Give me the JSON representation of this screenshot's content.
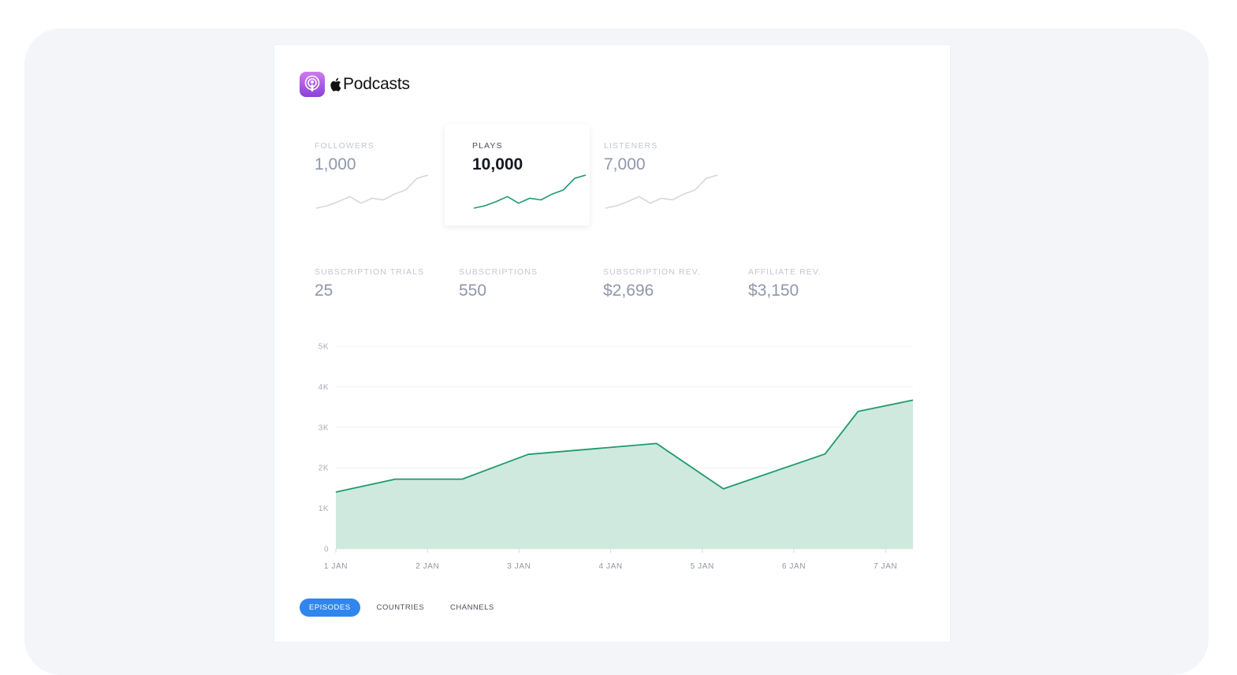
{
  "brand": {
    "name": "Podcasts",
    "icon": "podcasts-app-icon",
    "mark": "apple-logo-icon",
    "icon_gradient": [
      "#d07cf0",
      "#8a3fd8"
    ]
  },
  "metrics": [
    {
      "label": "FOLLOWERS",
      "value": "1,000",
      "active": false
    },
    {
      "label": "PLAYS",
      "value": "10,000",
      "active": true
    },
    {
      "label": "LISTENERS",
      "value": "7,000",
      "active": false
    }
  ],
  "sparkline_values": [
    2,
    2.6,
    3.6,
    4.8,
    3.2,
    4.4,
    4,
    5.4,
    6.4,
    9.2,
    10
  ],
  "stats": [
    {
      "label": "SUBSCRIPTION TRIALS",
      "value": "25"
    },
    {
      "label": "SUBSCRIPTIONS",
      "value": "550"
    },
    {
      "label": "SUBSCRIPTION REV.",
      "value": "$2,696"
    },
    {
      "label": "AFFILIATE REV.",
      "value": "$3,150"
    }
  ],
  "chart_data": {
    "type": "area",
    "x_ticks": [
      "1 JAN",
      "2 JAN",
      "3 JAN",
      "4 JAN",
      "5 JAN",
      "6 JAN",
      "7 JAN"
    ],
    "y_ticks": [
      "0",
      "1K",
      "2K",
      "3K",
      "4K",
      "5K"
    ],
    "ylim": [
      0,
      5000
    ],
    "xlim": [
      0,
      6.3
    ],
    "grid": true,
    "series": [
      {
        "x": [
          0,
          0.65,
          1.38,
          2.1,
          3.5,
          4.23,
          5.34,
          5.7,
          6.3
        ],
        "values": [
          1400,
          1720,
          1720,
          2330,
          2600,
          1480,
          2340,
          3390,
          3670
        ]
      }
    ],
    "colors": {
      "line": "#1f9a6f",
      "fill": "#cfe9de",
      "active_accent": "#2f86ef"
    }
  },
  "tabs": [
    {
      "label": "EPISODES",
      "active": true
    },
    {
      "label": "COUNTRIES",
      "active": false
    },
    {
      "label": "CHANNELS",
      "active": false
    }
  ]
}
